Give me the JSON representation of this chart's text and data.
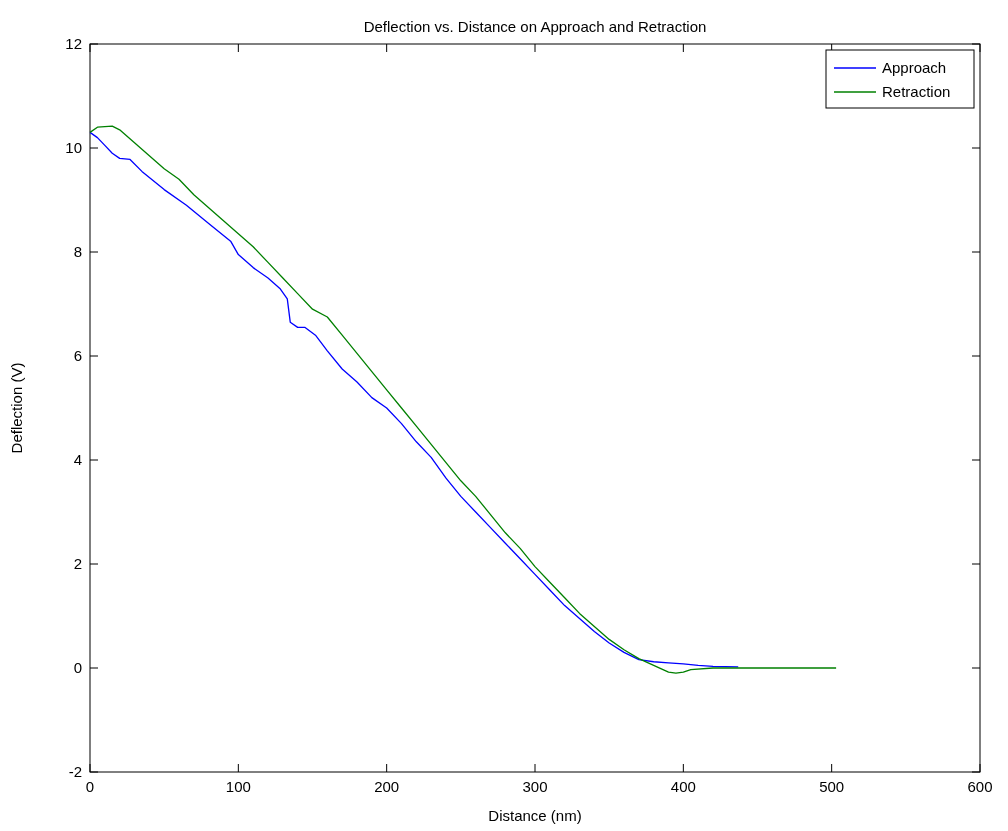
{
  "chart_data": {
    "type": "line",
    "title": "Deflection vs. Distance on Approach and Retraction",
    "xlabel": "Distance (nm)",
    "ylabel": "Deflection (V)",
    "xlim": [
      0,
      600
    ],
    "xticks": [
      0,
      100,
      200,
      300,
      400,
      500,
      600
    ],
    "ylim": [
      -2,
      12
    ],
    "yticks": [
      -2,
      0,
      2,
      4,
      6,
      8,
      10,
      12
    ],
    "legend": "top right",
    "grid": false,
    "series": [
      {
        "name": "Approach",
        "color": "#0000ff",
        "x": [
          0,
          5,
          10,
          15,
          20,
          27,
          35,
          50,
          65,
          80,
          95,
          100,
          110,
          120,
          128,
          133,
          135,
          140,
          145,
          152,
          160,
          170,
          180,
          190,
          200,
          210,
          220,
          230,
          240,
          250,
          260,
          270,
          280,
          290,
          300,
          310,
          320,
          330,
          340,
          350,
          360,
          370,
          380,
          390,
          400,
          410,
          420,
          437
        ],
        "values": [
          10.3,
          10.2,
          10.05,
          9.9,
          9.8,
          9.78,
          9.55,
          9.2,
          8.9,
          8.55,
          8.2,
          7.95,
          7.7,
          7.5,
          7.3,
          7.1,
          6.65,
          6.55,
          6.55,
          6.4,
          6.1,
          5.75,
          5.5,
          5.2,
          5.0,
          4.7,
          4.35,
          4.05,
          3.65,
          3.3,
          3.0,
          2.7,
          2.4,
          2.1,
          1.8,
          1.5,
          1.2,
          0.95,
          0.7,
          0.48,
          0.3,
          0.16,
          0.12,
          0.1,
          0.08,
          0.05,
          0.03,
          0.02
        ]
      },
      {
        "name": "Retraction",
        "color": "#008000",
        "x": [
          0,
          5,
          15,
          20,
          30,
          40,
          50,
          60,
          70,
          80,
          90,
          100,
          110,
          120,
          130,
          140,
          150,
          160,
          170,
          180,
          190,
          200,
          210,
          220,
          230,
          240,
          250,
          260,
          270,
          280,
          290,
          300,
          310,
          320,
          330,
          340,
          350,
          360,
          370,
          380,
          390,
          395,
          400,
          405,
          420,
          450,
          503
        ],
        "values": [
          10.3,
          10.4,
          10.42,
          10.35,
          10.1,
          9.85,
          9.6,
          9.4,
          9.1,
          8.85,
          8.6,
          8.35,
          8.1,
          7.8,
          7.5,
          7.2,
          6.9,
          6.75,
          6.4,
          6.05,
          5.7,
          5.35,
          5.0,
          4.65,
          4.3,
          3.95,
          3.6,
          3.3,
          2.95,
          2.6,
          2.3,
          1.95,
          1.65,
          1.35,
          1.05,
          0.8,
          0.55,
          0.35,
          0.18,
          0.05,
          -0.08,
          -0.1,
          -0.08,
          -0.03,
          0,
          0,
          0
        ]
      }
    ]
  }
}
